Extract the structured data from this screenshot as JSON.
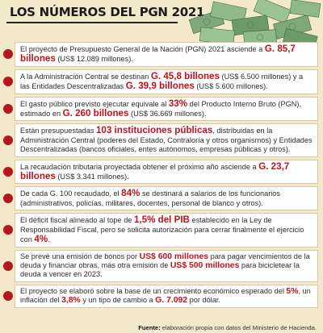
{
  "title": "LOS NÚMEROS DEL PGN 2021",
  "items": [
    {
      "t1": "El proyecto de Presupuesto General de la Nación (PGN) 2021 asciende a ",
      "h1": "G. 85,7 billones",
      "t2": " (US$ 12.089 millones)."
    },
    {
      "t1": "A la Administración Central se destinan ",
      "h1": "G. 45,8 billones",
      "t2": " (US$ 6.500 millones) y a las Entidades Descentralizadas ",
      "h2": "G. 39,9 billones",
      "t3": " (US$ 5.600 millones)."
    },
    {
      "t1": "El gasto público previsto ejecutar equivale al ",
      "h1": "33%",
      "t2": " del Producto Interno Bruto (PGN), estimado en ",
      "h2": "G. 260 billones",
      "t3": " (US$ 36.669 millones)."
    },
    {
      "t1": "Están presupuestadas ",
      "h1": "103 instituciones públicas",
      "t2": ", distribuidas en la Administración Central (poderes del Estado, Contraloría y otros organismos) y Entidades Descentralizadas (bancos oficiales, entes autónomos, empresas públicas y otros)."
    },
    {
      "t1": "La recaudación tributaria proyectada obtener el próximo año asciende a ",
      "h1": "G. 23,7 billones",
      "t2": " (US$ 3.341 millones)."
    },
    {
      "t1": "De cada G. 100 recaudado, el ",
      "h1": "84%",
      "t2": " se destinará a salarios de los funcionarios (administrativos, policías, militares, docentes, personal de blanco y otros)."
    },
    {
      "t1": "El déficit fiscal alineado al tope de ",
      "h1": "1,5% del PIB",
      "t2": " establecido en la Ley de Responsabilidad Fiscal, pero se solicita autorización para cerrar finalmente el ejercicio con ",
      "h2": "4%",
      "t3": "."
    },
    {
      "t1": "Se prevé una emisión de bonos por ",
      "h1": "US$ 600 millones",
      "t2": " para pagar vencimientos de la deuda y financiar obras, más otra emisión de ",
      "h2": "US$ 500 millones",
      "t3": " para bicicletear la deuda a vencer en 2023."
    },
    {
      "t1": "El proyecto se elaboró sobre la base de un crecimiento económico esperado del ",
      "h1": "5%",
      "t2": ", un inflación del ",
      "h2": "3,8%",
      "t3": " y un tipo de cambio a ",
      "h3": "G. 7.092",
      "t4": " por dólar."
    }
  ],
  "source": {
    "label": "Fuente:",
    "text": " elaboración propia con datos del Ministerio de Hacienda."
  },
  "colors": {
    "background": "#f4e8cb",
    "accent": "#c1121c",
    "bullet": "#b5171e",
    "money": "#6d9a6a"
  },
  "decoration": "money-bills-illustration"
}
